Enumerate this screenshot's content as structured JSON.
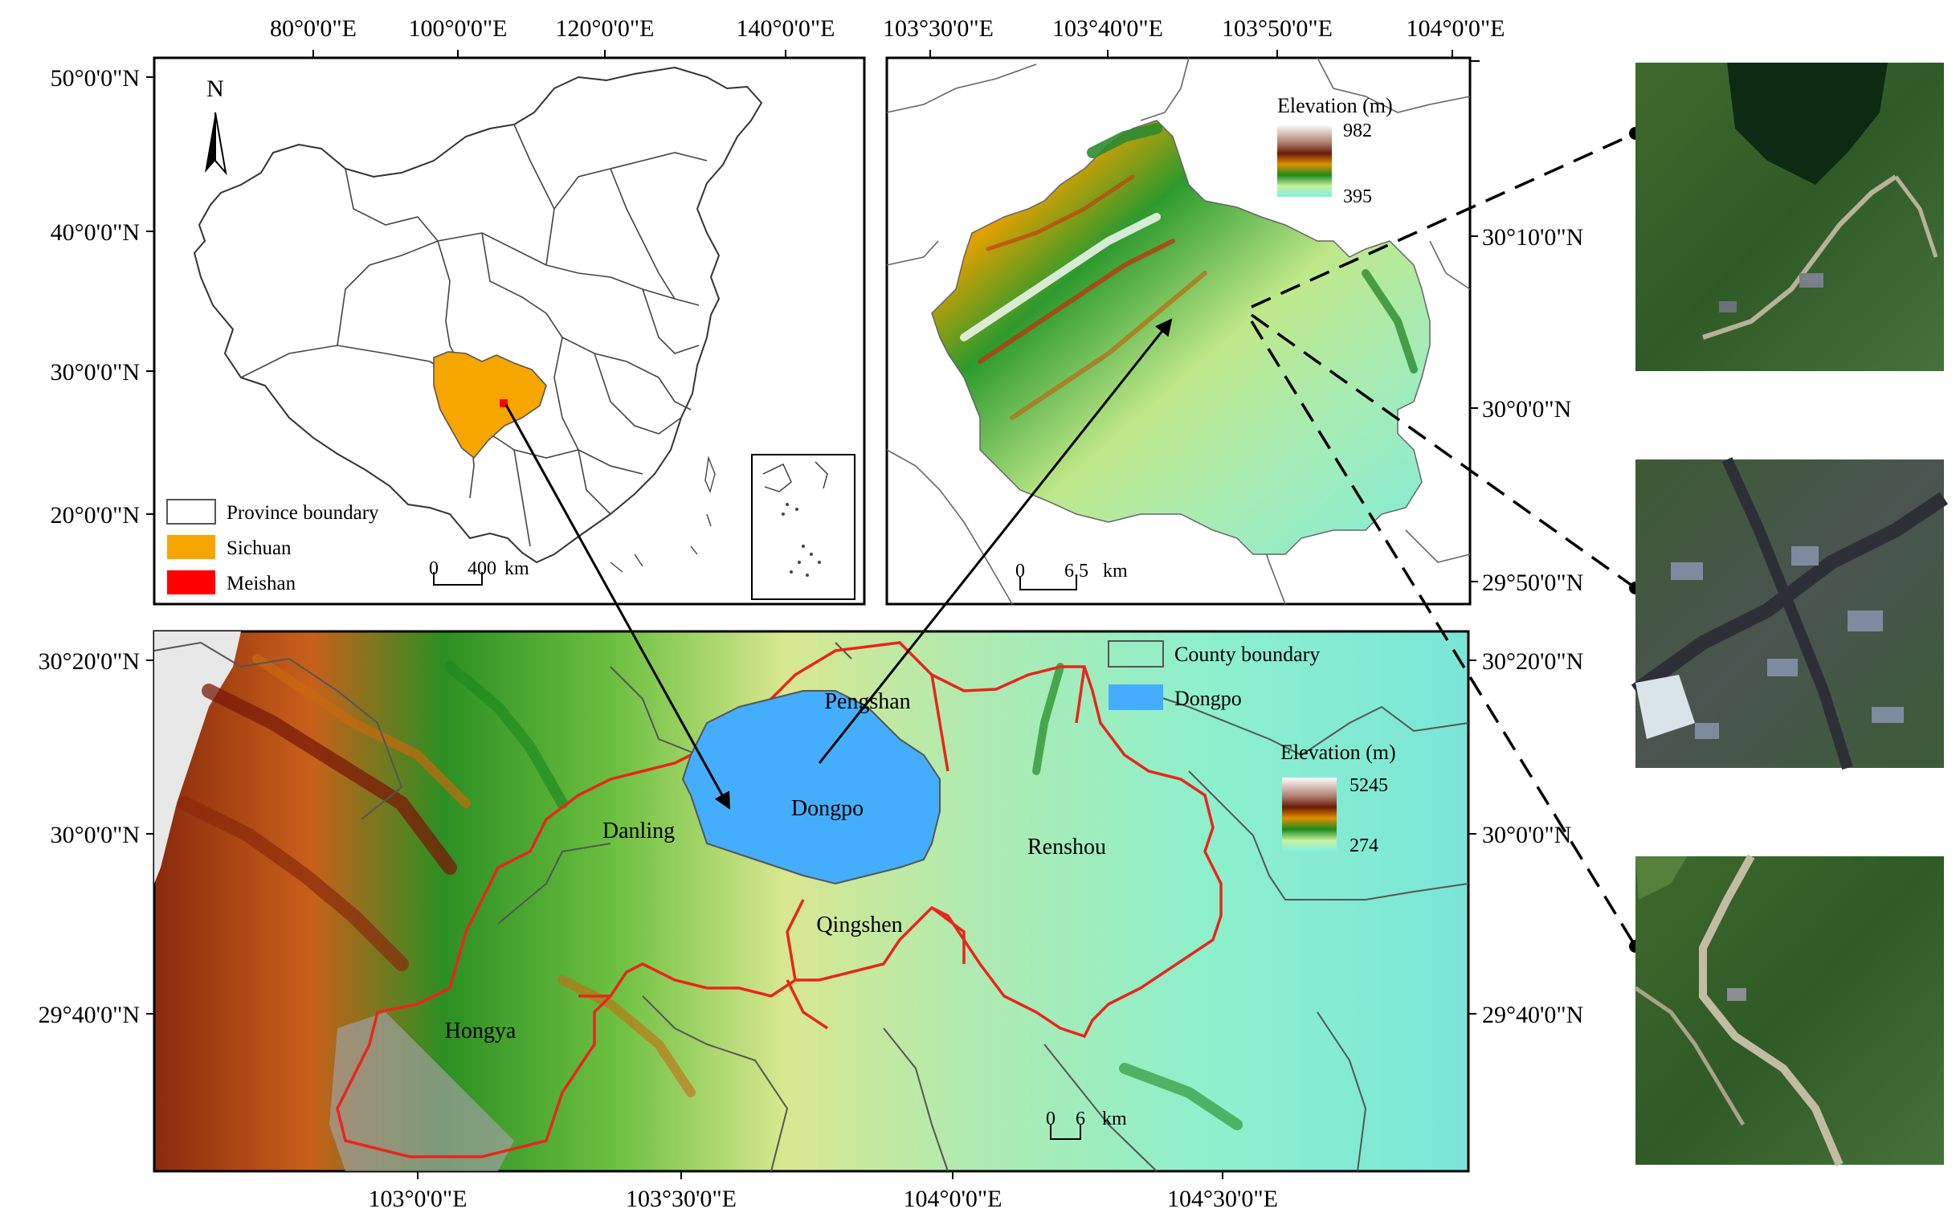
{
  "panels": {
    "china": {
      "top_ticks": [
        "80°0'0\"E",
        "100°0'0\"E",
        "120°0'0\"E",
        "140°0'0\"E"
      ],
      "left_ticks": [
        "50°0'0\"N",
        "40°0'0\"N",
        "30°0'0\"N",
        "20°0'0\"N"
      ],
      "north_label": "N",
      "legend": [
        {
          "label": "Province boundary",
          "color": "#ffffff"
        },
        {
          "label": "Sichuan",
          "color": "#f7a600"
        },
        {
          "label": "Meishan",
          "color": "#ff0000"
        }
      ],
      "scalebar": {
        "start": "0",
        "end": "400",
        "unit": "km"
      }
    },
    "dongpo": {
      "top_ticks": [
        "103°30'0\"E",
        "103°40'0\"E",
        "103°50'0\"E",
        "104°0'0\"E"
      ],
      "right_ticks": [
        "30°10'0\"N",
        "30°0'0\"N",
        "29°50'0\"N"
      ],
      "legend_title": "Elevation (m)",
      "elev_max": "982",
      "elev_min": "395",
      "scalebar": {
        "start": "0",
        "end": "6.5",
        "unit": "km"
      }
    },
    "meishan": {
      "left_ticks": [
        "30°20'0\"N",
        "30°0'0\"N",
        "29°40'0\"N"
      ],
      "right_ticks": [
        "30°20'0\"N",
        "30°0'0\"N",
        "29°40'0\"N"
      ],
      "bottom_ticks": [
        "103°0'0\"E",
        "103°30'0\"E",
        "104°0'0\"E",
        "104°30'0\"E"
      ],
      "legend": [
        {
          "label": "County boundary",
          "color": "#ffffff"
        },
        {
          "label": "Dongpo",
          "color": "#45aefc"
        }
      ],
      "legend_title": "Elevation (m)",
      "elev_max": "5245",
      "elev_min": "274",
      "counties": [
        "Pengshan",
        "Dongpo",
        "Danling",
        "Renshou",
        "Qingshen",
        "Hongya"
      ],
      "scalebar": {
        "start": "0",
        "end": "6",
        "unit": "km"
      }
    }
  },
  "colors": {
    "sichuan": "#f7a600",
    "dongpo": "#45aefc",
    "county_boundary": "#e8261c",
    "elev_high": "#ffffff",
    "elev_brown": "#8a2a0c",
    "elev_orange": "#d87a00",
    "elev_green": "#1f8f1f",
    "elev_low": "#8ef0dc"
  }
}
